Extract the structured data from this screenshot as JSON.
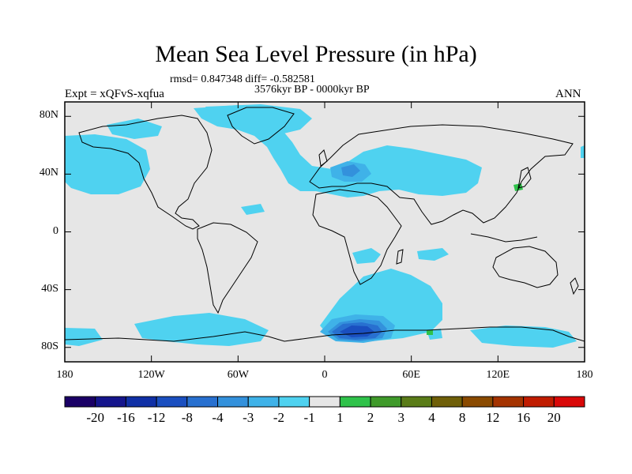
{
  "title": "Mean Sea Level Pressure (in hPa)",
  "stats_line": "rmsd= 0.847348 diff= -0.582581",
  "period": "3576kyr BP - 0000kyr BP",
  "experiment": "Expt = xQFvS-xqfua",
  "season": "ANN",
  "lon_ticks": [
    {
      "value": -180,
      "label": "180"
    },
    {
      "value": -120,
      "label": "120W"
    },
    {
      "value": -60,
      "label": "60W"
    },
    {
      "value": 0,
      "label": "0"
    },
    {
      "value": 60,
      "label": "60E"
    },
    {
      "value": 120,
      "label": "120E"
    },
    {
      "value": 180,
      "label": "180"
    }
  ],
  "lat_ticks": [
    {
      "value": 80,
      "label": "80N"
    },
    {
      "value": 40,
      "label": "40N"
    },
    {
      "value": 0,
      "label": "0"
    },
    {
      "value": -40,
      "label": "40S"
    },
    {
      "value": -80,
      "label": "80S"
    }
  ],
  "lat_range": [
    -90,
    90
  ],
  "lon_range": [
    -180,
    180
  ],
  "colorbar": {
    "colors": [
      "#1a0066",
      "#15158c",
      "#1030a6",
      "#1a4fc0",
      "#2870d0",
      "#3391dc",
      "#3fb2e8",
      "#4fd2f0",
      "#e6e6e6",
      "#2fc24a",
      "#3f9a2a",
      "#5a7c18",
      "#6f5f08",
      "#8a4a00",
      "#a43300",
      "#c01c00",
      "#d90808"
    ],
    "labels": [
      "-20",
      "-16",
      "-12",
      "-8",
      "-4",
      "-3",
      "-2",
      "-1",
      "1",
      "2",
      "3",
      "4",
      "8",
      "12",
      "16",
      "20"
    ]
  },
  "colors": {
    "background": "#e6e6e6",
    "light_negative": "#4fd2f0",
    "negative_2": "#3fb2e8",
    "negative_3": "#3391dc",
    "negative_4": "#2870d0",
    "negative_8": "#1a4fc0",
    "positive": "#2fc24a"
  },
  "anomaly_regions": [
    {
      "level": -1,
      "color": "#4fd2f0",
      "region": "north-atlantic-europe"
    },
    {
      "level": -1,
      "color": "#4fd2f0",
      "region": "north-pacific"
    },
    {
      "level": -1,
      "color": "#4fd2f0",
      "region": "southern-ocean-atlantic"
    },
    {
      "level": -2,
      "color": "#3fb2e8",
      "region": "central-europe"
    },
    {
      "level": -3,
      "color": "#3391dc",
      "region": "central-europe-core"
    },
    {
      "level": -4,
      "color": "#2870d0",
      "region": "weddell-sea"
    },
    {
      "level": -8,
      "color": "#1a4fc0",
      "region": "weddell-sea-core"
    },
    {
      "level": 1,
      "color": "#2fc24a",
      "region": "japan"
    }
  ]
}
